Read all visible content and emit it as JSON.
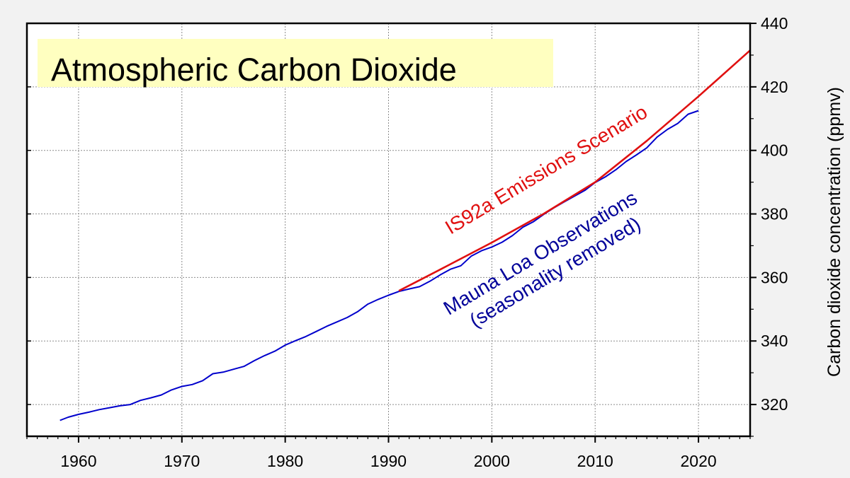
{
  "chart_data": {
    "type": "line",
    "title": "Atmospheric Carbon Dioxide",
    "xlabel": "",
    "ylabel": "Carbon dioxide concentration (ppmv)",
    "xlim": [
      1955,
      2025
    ],
    "ylim": [
      310,
      440
    ],
    "xticks": [
      1960,
      1970,
      1980,
      1990,
      2000,
      2010,
      2020
    ],
    "yticks": [
      320,
      340,
      360,
      380,
      400,
      420,
      440
    ],
    "grid": true,
    "y_axis_side": "right",
    "series": [
      {
        "name": "Mauna Loa Observations (seasonality removed)",
        "label_lines": [
          "Mauna Loa Observations",
          "(seasonality removed)"
        ],
        "color": "#0000cc",
        "x": [
          1958.2,
          1959,
          1960,
          1961,
          1962,
          1963,
          1964,
          1965,
          1966,
          1967,
          1968,
          1969,
          1970,
          1971,
          1972,
          1973,
          1974,
          1975,
          1976,
          1977,
          1978,
          1979,
          1980,
          1981,
          1982,
          1983,
          1984,
          1985,
          1986,
          1987,
          1988,
          1989,
          1990,
          1991,
          1992,
          1993,
          1994,
          1995,
          1996,
          1997,
          1998,
          1999,
          2000,
          2001,
          2002,
          2003,
          2004,
          2005,
          2006,
          2007,
          2008,
          2009,
          2010,
          2011,
          2012,
          2013,
          2014,
          2015,
          2016,
          2017,
          2018,
          2019,
          2020
        ],
        "values": [
          315.0,
          316.0,
          316.9,
          317.6,
          318.4,
          319.0,
          319.6,
          320.0,
          321.3,
          322.1,
          323.0,
          324.6,
          325.7,
          326.3,
          327.5,
          329.7,
          330.2,
          331.1,
          332.0,
          333.8,
          335.4,
          336.8,
          338.7,
          340.1,
          341.4,
          343.0,
          344.6,
          346.0,
          347.4,
          349.2,
          351.6,
          353.1,
          354.4,
          355.6,
          356.4,
          357.1,
          358.8,
          360.8,
          362.6,
          363.7,
          366.7,
          368.4,
          369.6,
          371.1,
          373.2,
          375.8,
          377.5,
          379.8,
          381.9,
          383.8,
          385.6,
          387.4,
          389.9,
          391.7,
          393.9,
          396.5,
          398.6,
          400.8,
          404.2,
          406.6,
          408.5,
          411.4,
          412.5
        ]
      },
      {
        "name": "IS92a Emissions Scenario",
        "label_lines": [
          "IS92a Emissions Scenario"
        ],
        "color": "#e01010",
        "x": [
          1991,
          1995,
          2000,
          2005,
          2010,
          2015,
          2020,
          2025
        ],
        "values": [
          355.8,
          362.5,
          371.0,
          380.0,
          390.0,
          403.0,
          417.0,
          431.5
        ]
      }
    ]
  }
}
